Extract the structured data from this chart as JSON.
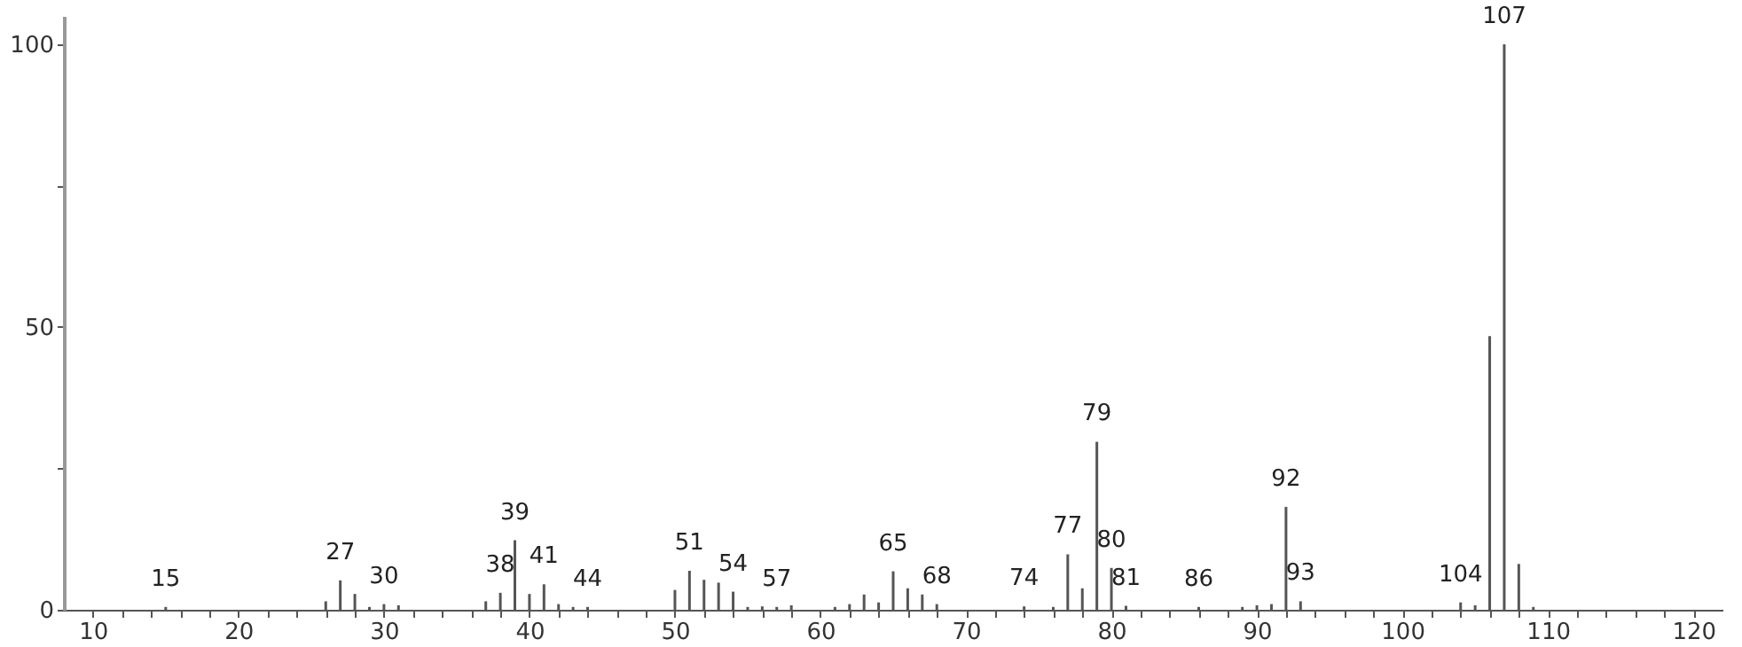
{
  "chart_data": {
    "type": "bar",
    "color": "#555555",
    "x": [
      15,
      26,
      27,
      28,
      29,
      30,
      31,
      37,
      38,
      39,
      40,
      41,
      42,
      43,
      44,
      45,
      50,
      51,
      52,
      53,
      54,
      55,
      56,
      57,
      58,
      61,
      62,
      63,
      64,
      65,
      66,
      67,
      68,
      69,
      73,
      74,
      75,
      76,
      77,
      78,
      79,
      80,
      81,
      82,
      86,
      89,
      90,
      91,
      92,
      93,
      104,
      105,
      106,
      107,
      108,
      109
    ],
    "values": [
      0.5,
      1.5,
      5.2,
      2.8,
      0.5,
      1,
      0.8,
      1.5,
      3,
      12.3,
      2.8,
      4.5,
      1,
      0.5,
      0.5,
      null,
      3.5,
      6.9,
      5.3,
      4.8,
      3.2,
      0.5,
      0.6,
      0.5,
      0.8,
      0.5,
      1,
      2.7,
      1.3,
      6.8,
      3.8,
      2.7,
      1,
      null,
      null,
      0.6,
      null,
      0.5,
      9.8,
      3.8,
      29.7,
      7.4,
      0.7,
      null,
      0.5,
      0.5,
      0.8,
      1,
      18.2,
      1.5,
      1.3,
      0.8,
      48.4,
      100,
      8.1,
      0.5
    ],
    "annotations": [
      {
        "text": "15",
        "x": 15,
        "y": 0.5
      },
      {
        "text": "27",
        "x": 27,
        "y": 5.2
      },
      {
        "text": "30",
        "x": 30,
        "y": 1
      },
      {
        "text": "38",
        "x": 38,
        "y": 3
      },
      {
        "text": "39",
        "x": 39,
        "y": 12.3
      },
      {
        "text": "41",
        "x": 41,
        "y": 4.5
      },
      {
        "text": "44",
        "x": 44,
        "y": 0.5
      },
      {
        "text": "51",
        "x": 51,
        "y": 6.9
      },
      {
        "text": "54",
        "x": 54,
        "y": 3.2
      },
      {
        "text": "57",
        "x": 57,
        "y": 0.5
      },
      {
        "text": "65",
        "x": 65,
        "y": 6.8
      },
      {
        "text": "68",
        "x": 68,
        "y": 1
      },
      {
        "text": "74",
        "x": 74,
        "y": 0.6
      },
      {
        "text": "77",
        "x": 77,
        "y": 9.8
      },
      {
        "text": "79",
        "x": 79,
        "y": 29.7
      },
      {
        "text": "80",
        "x": 80,
        "y": 7.4
      },
      {
        "text": "81",
        "x": 81,
        "y": 0.7
      },
      {
        "text": "86",
        "x": 86,
        "y": 0.5
      },
      {
        "text": "92",
        "x": 92,
        "y": 18.2
      },
      {
        "text": "93",
        "x": 93,
        "y": 1.5
      },
      {
        "text": "104",
        "x": 104,
        "y": 1.3
      },
      {
        "text": "107",
        "x": 107,
        "y": 100
      }
    ],
    "xlim": [
      8,
      122
    ],
    "ylim": [
      0,
      105
    ],
    "xticks": [
      10,
      {
        "value": 12,
        "label": null
      },
      {
        "value": 14,
        "label": null
      },
      {
        "value": 16,
        "label": null
      },
      {
        "value": 18,
        "label": null
      },
      20,
      {
        "value": 22,
        "label": null
      },
      {
        "value": 24,
        "label": null
      },
      {
        "value": 26,
        "label": null
      },
      {
        "value": 28,
        "label": null
      },
      30,
      {
        "value": 32,
        "label": null
      },
      {
        "value": 34,
        "label": null
      },
      {
        "value": 36,
        "label": null
      },
      {
        "value": 38,
        "label": null
      },
      40,
      {
        "value": 42,
        "label": null
      },
      {
        "value": 44,
        "label": null
      },
      {
        "value": 46,
        "label": null
      },
      {
        "value": 48,
        "label": null
      },
      50,
      {
        "value": 52,
        "label": null
      },
      {
        "value": 54,
        "label": null
      },
      {
        "value": 56,
        "label": null
      },
      {
        "value": 58,
        "label": null
      },
      60,
      {
        "value": 62,
        "label": null
      },
      {
        "value": 64,
        "label": null
      },
      {
        "value": 66,
        "label": null
      },
      {
        "value": 68,
        "label": null
      },
      70,
      {
        "value": 72,
        "label": null
      },
      {
        "value": 74,
        "label": null
      },
      {
        "value": 76,
        "label": null
      },
      {
        "value": 78,
        "label": null
      },
      80,
      {
        "value": 82,
        "label": null
      },
      {
        "value": 84,
        "label": null
      },
      {
        "value": 86,
        "label": null
      },
      {
        "value": 88,
        "label": null
      },
      90,
      {
        "value": 92,
        "label": null
      },
      {
        "value": 94,
        "label": null
      },
      {
        "value": 96,
        "label": null
      },
      {
        "value": 98,
        "label": null
      },
      100,
      {
        "value": 102,
        "label": null
      },
      {
        "value": 104,
        "label": null
      },
      {
        "value": 106,
        "label": null
      },
      {
        "value": 108,
        "label": null
      },
      110,
      {
        "value": 112,
        "label": null
      },
      {
        "value": 114,
        "label": null
      },
      {
        "value": 116,
        "label": null
      },
      {
        "value": 118,
        "label": null
      },
      120
    ],
    "yticks": [
      0,
      {
        "value": 25,
        "label": null
      },
      50,
      {
        "value": 75,
        "label": null
      },
      100
    ],
    "grid": false
  }
}
